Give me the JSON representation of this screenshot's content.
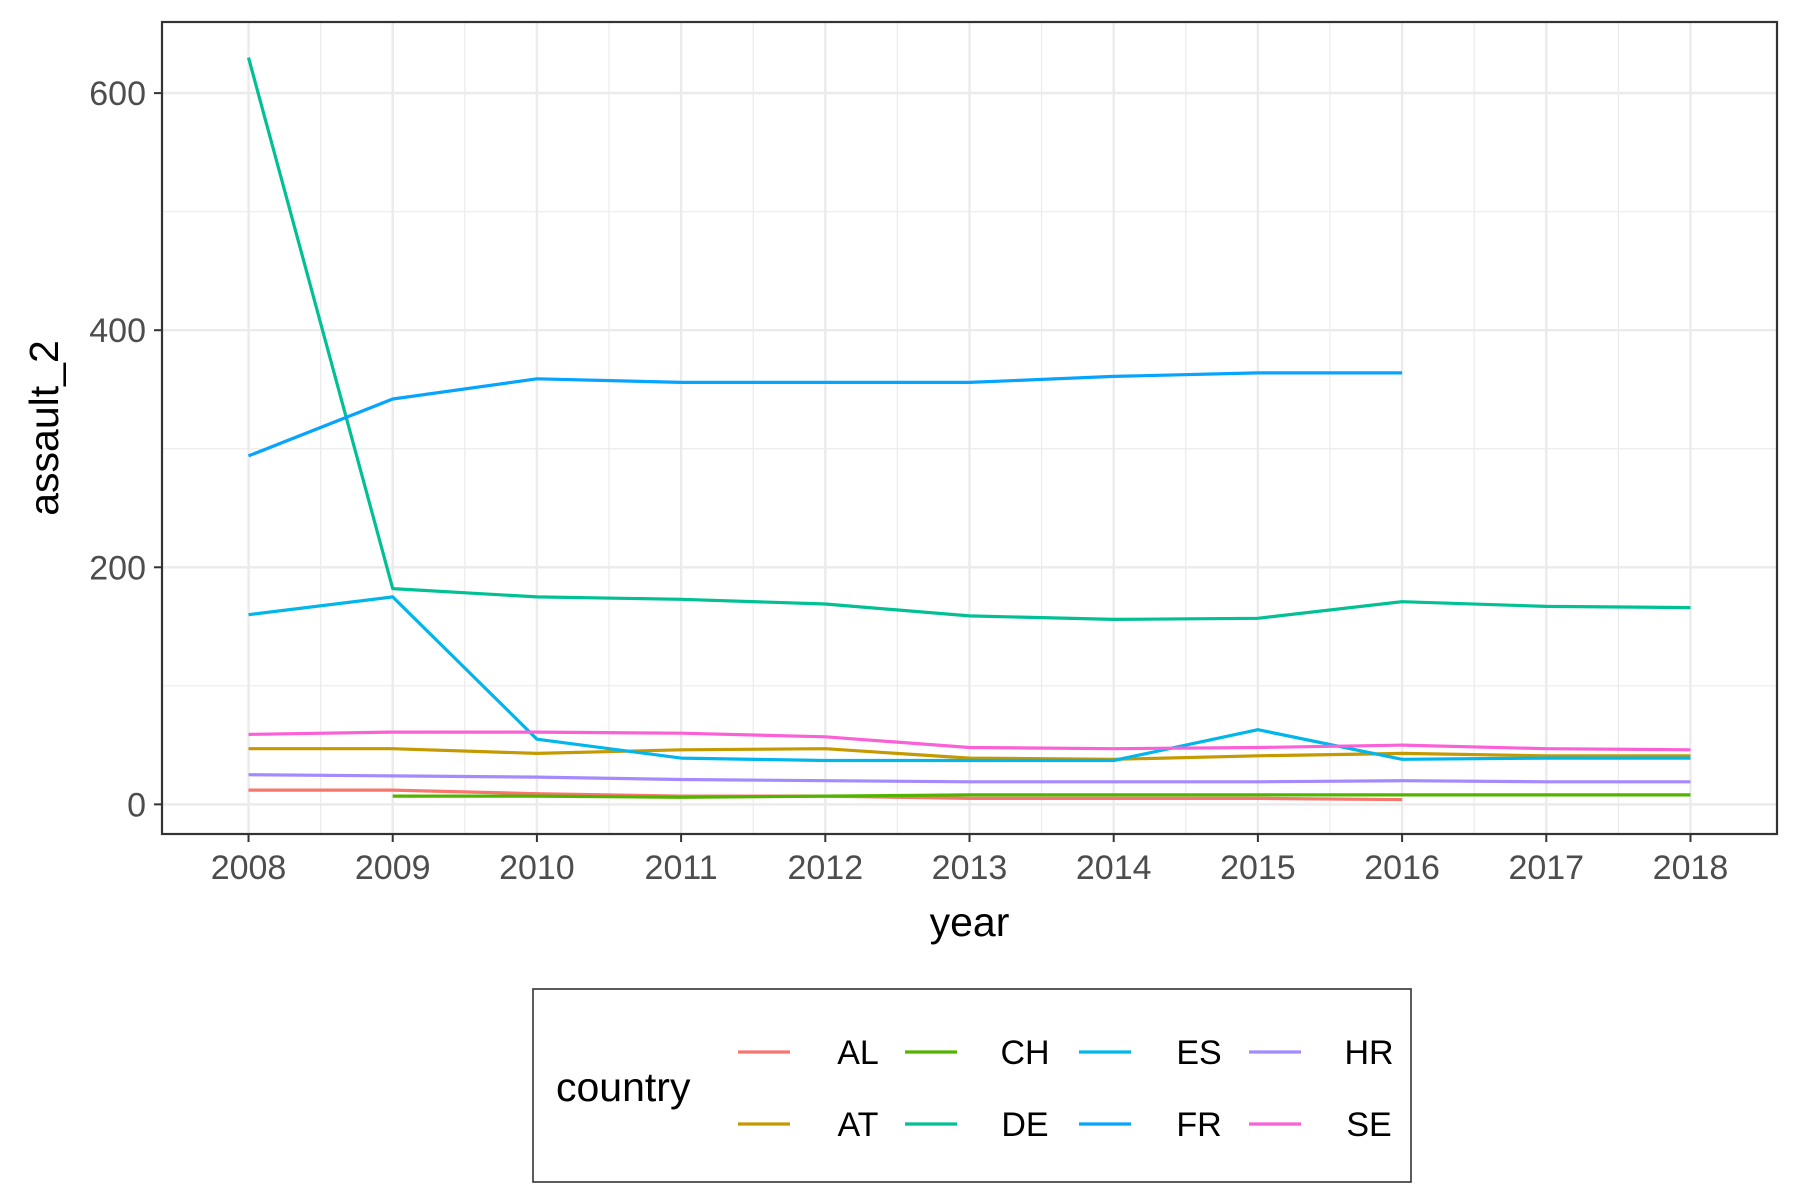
{
  "chart_data": {
    "type": "line",
    "xlabel": "year",
    "ylabel": "assault_2",
    "x": [
      2008,
      2009,
      2010,
      2011,
      2012,
      2013,
      2014,
      2015,
      2016,
      2017,
      2018
    ],
    "x_ticks": [
      "2008",
      "2009",
      "2010",
      "2011",
      "2012",
      "2013",
      "2014",
      "2015",
      "2016",
      "2017",
      "2018"
    ],
    "y_ticks": [
      "0",
      "200",
      "400",
      "600"
    ],
    "y_tick_values": [
      0,
      200,
      400,
      600
    ],
    "xlim": [
      2007.4,
      2018.6
    ],
    "ylim": [
      -25,
      660
    ],
    "grid": true,
    "legend": {
      "title": "country",
      "placement": "bottom"
    },
    "series": [
      {
        "name": "AL",
        "color": "#F8766D",
        "values": [
          12,
          12,
          9,
          7,
          7,
          5,
          5,
          5,
          4,
          null,
          null
        ]
      },
      {
        "name": "AT",
        "color": "#C49A00",
        "values": [
          47,
          47,
          43,
          46,
          47,
          39,
          38,
          41,
          43,
          41,
          41
        ]
      },
      {
        "name": "CH",
        "color": "#53B400",
        "values": [
          null,
          7,
          7,
          6,
          7,
          8,
          8,
          8,
          8,
          8,
          8
        ]
      },
      {
        "name": "DE",
        "color": "#00C094",
        "values": [
          630,
          182,
          175,
          173,
          169,
          159,
          156,
          157,
          171,
          167,
          166
        ]
      },
      {
        "name": "ES",
        "color": "#00B6EB",
        "values": [
          160,
          175,
          55,
          39,
          37,
          37,
          37,
          63,
          38,
          39,
          39
        ]
      },
      {
        "name": "FR",
        "color": "#06A4FF",
        "values": [
          294,
          342,
          359,
          356,
          356,
          356,
          361,
          364,
          364,
          null,
          null
        ]
      },
      {
        "name": "HR",
        "color": "#A58AFF",
        "values": [
          25,
          24,
          23,
          21,
          20,
          19,
          19,
          19,
          20,
          19,
          19
        ]
      },
      {
        "name": "SE",
        "color": "#FB61D7",
        "values": [
          59,
          61,
          61,
          60,
          57,
          48,
          47,
          48,
          50,
          47,
          46
        ]
      }
    ]
  }
}
